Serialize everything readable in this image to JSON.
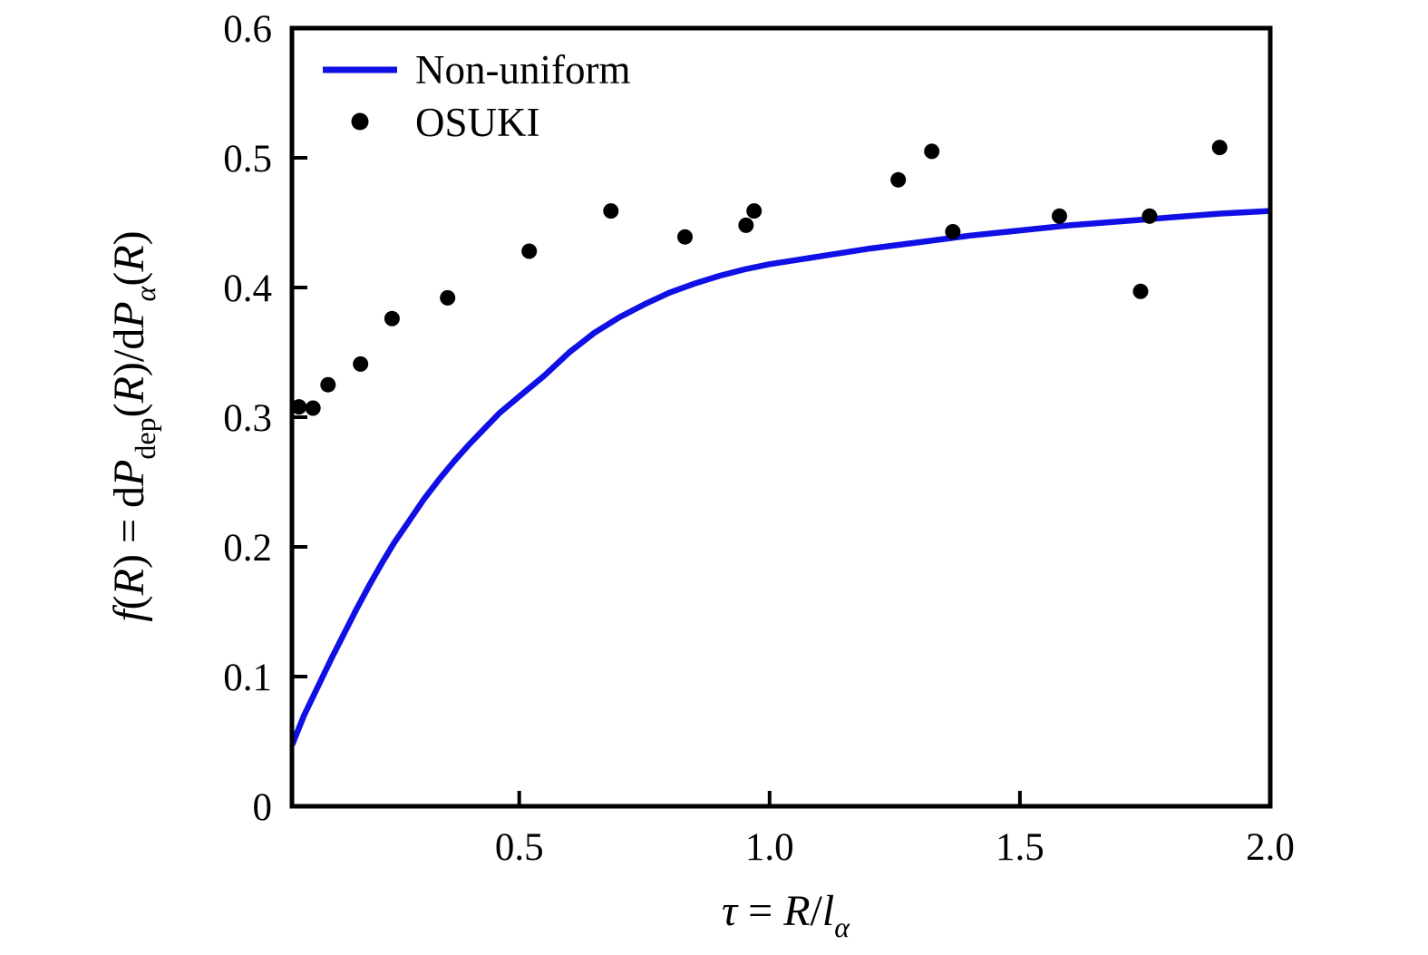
{
  "figure": {
    "background": "#ffffff",
    "text_color": "#000000"
  },
  "chart_data": {
    "type": "line+scatter",
    "title": "",
    "xlabel": "τ = R/l_α",
    "ylabel": "f(R) = dP_dep(R)/dP_α(R)",
    "xlabel_parts": [
      {
        "t": "τ",
        "i": true
      },
      {
        "t": " = "
      },
      {
        "t": "R",
        "i": true
      },
      {
        "t": "/"
      },
      {
        "t": "l",
        "i": true
      },
      {
        "t": "α",
        "i": true,
        "sub": true
      }
    ],
    "ylabel_parts": [
      {
        "t": "f",
        "i": true
      },
      {
        "t": "("
      },
      {
        "t": "R",
        "i": true
      },
      {
        "t": ") = d"
      },
      {
        "t": "P",
        "i": true
      },
      {
        "t": "dep",
        "sub": true
      },
      {
        "t": "("
      },
      {
        "t": "R",
        "i": true
      },
      {
        "t": ")/d"
      },
      {
        "t": "P",
        "i": true
      },
      {
        "t": "α",
        "i": true,
        "sub": true
      },
      {
        "t": "("
      },
      {
        "t": "R",
        "i": true
      },
      {
        "t": ")"
      }
    ],
    "xlim": [
      0.046,
      2.0
    ],
    "ylim": [
      0,
      0.6
    ],
    "grid": false,
    "xticks": {
      "values": [
        0.5,
        1.0,
        1.5,
        2.0
      ],
      "labels": [
        "0.5",
        "1.0",
        "1.5",
        "2.0"
      ]
    },
    "yticks": {
      "values": [
        0,
        0.1,
        0.2,
        0.3,
        0.4,
        0.5,
        0.6
      ],
      "labels": [
        "0",
        "0.1",
        "0.2",
        "0.3",
        "0.4",
        "0.5",
        "0.6"
      ]
    },
    "legend": {
      "location": "upper left",
      "items": [
        "Non-uniform",
        "OSUKI"
      ]
    },
    "series": [
      {
        "name": "Non-uniform",
        "type": "line",
        "color": "#0f0fe6",
        "points": [
          [
            0.047,
            0.048
          ],
          [
            0.07,
            0.07
          ],
          [
            0.1,
            0.094
          ],
          [
            0.125,
            0.114
          ],
          [
            0.15,
            0.133
          ],
          [
            0.175,
            0.152
          ],
          [
            0.2,
            0.17
          ],
          [
            0.225,
            0.187
          ],
          [
            0.25,
            0.203
          ],
          [
            0.28,
            0.22
          ],
          [
            0.31,
            0.237
          ],
          [
            0.34,
            0.252
          ],
          [
            0.37,
            0.266
          ],
          [
            0.4,
            0.279
          ],
          [
            0.43,
            0.291
          ],
          [
            0.46,
            0.303
          ],
          [
            0.5,
            0.316
          ],
          [
            0.55,
            0.332
          ],
          [
            0.6,
            0.35
          ],
          [
            0.65,
            0.365
          ],
          [
            0.7,
            0.377
          ],
          [
            0.75,
            0.387
          ],
          [
            0.8,
            0.396
          ],
          [
            0.85,
            0.403
          ],
          [
            0.9,
            0.409
          ],
          [
            0.95,
            0.414
          ],
          [
            1.0,
            0.418
          ],
          [
            1.1,
            0.424
          ],
          [
            1.2,
            0.43
          ],
          [
            1.3,
            0.435
          ],
          [
            1.4,
            0.44
          ],
          [
            1.5,
            0.444
          ],
          [
            1.6,
            0.448
          ],
          [
            1.7,
            0.451
          ],
          [
            1.8,
            0.454
          ],
          [
            1.9,
            0.457
          ],
          [
            2.0,
            0.459
          ]
        ]
      },
      {
        "name": "OSUKI",
        "type": "scatter",
        "color": "#000000",
        "points": [
          [
            0.06,
            0.308
          ],
          [
            0.088,
            0.307
          ],
          [
            0.118,
            0.325
          ],
          [
            0.183,
            0.341
          ],
          [
            0.246,
            0.376
          ],
          [
            0.357,
            0.392
          ],
          [
            0.52,
            0.428
          ],
          [
            0.683,
            0.459
          ],
          [
            0.831,
            0.439
          ],
          [
            0.953,
            0.448
          ],
          [
            0.969,
            0.459
          ],
          [
            1.257,
            0.483
          ],
          [
            1.324,
            0.505
          ],
          [
            1.366,
            0.443
          ],
          [
            1.579,
            0.455
          ],
          [
            1.741,
            0.397
          ],
          [
            1.759,
            0.455
          ],
          [
            1.899,
            0.508
          ]
        ]
      }
    ]
  }
}
